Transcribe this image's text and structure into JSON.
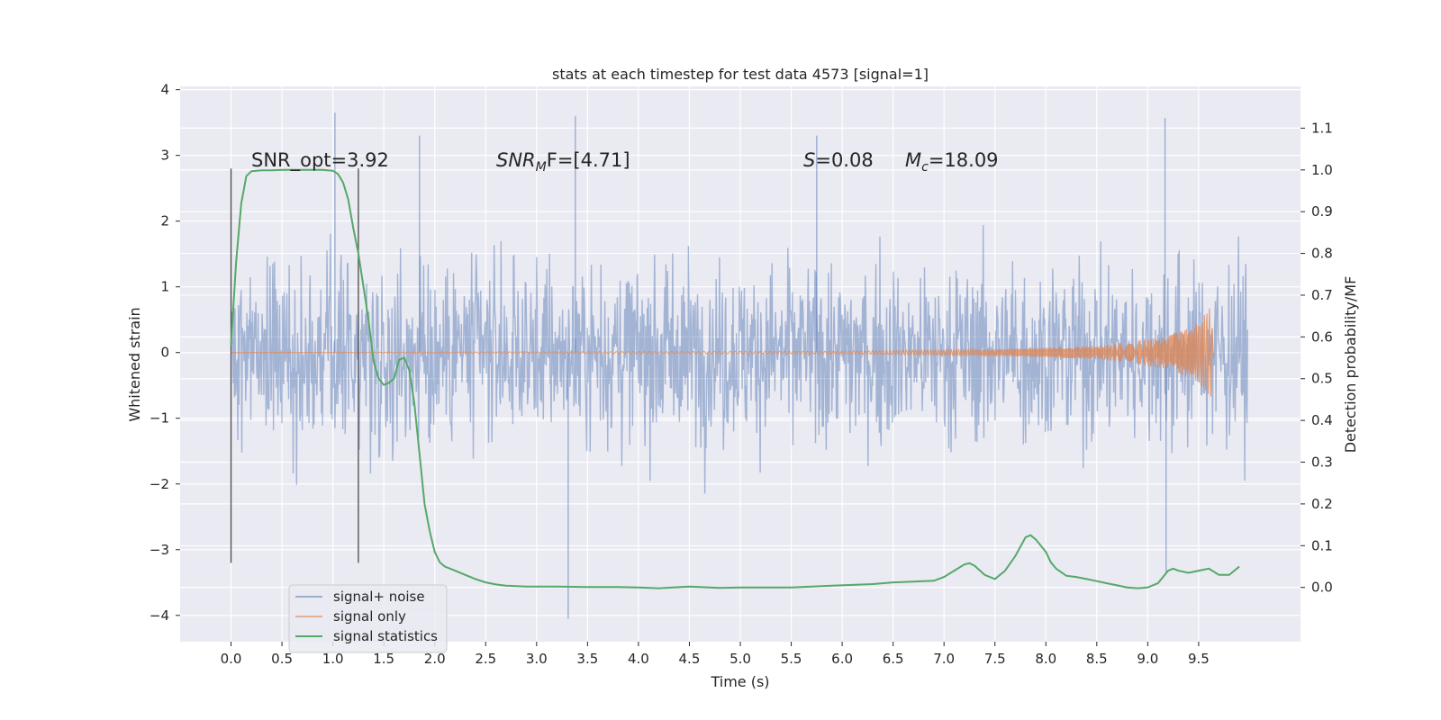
{
  "chart_data": {
    "type": "line",
    "title": "stats at each timestep for test data 4573 [signal=1]",
    "xlabel": "Time (s)",
    "ylabel_left": "Whitened strain",
    "ylabel_right": "Detection probability/MF",
    "xlim": [
      -0.5,
      10.5
    ],
    "ylim_left": [
      -4.4,
      4.05
    ],
    "ylim_right": [
      -0.13,
      1.2
    ],
    "xticks": [
      "0.0",
      "0.5",
      "1.0",
      "1.5",
      "2.0",
      "2.5",
      "3.0",
      "3.5",
      "4.0",
      "4.5",
      "5.0",
      "5.5",
      "6.0",
      "6.5",
      "7.0",
      "7.5",
      "8.0",
      "8.5",
      "9.0",
      "9.5"
    ],
    "yticks_left": [
      "4",
      "3",
      "2",
      "1",
      "0",
      "−1",
      "−2",
      "−3",
      "−4"
    ],
    "yticks_right": [
      "1.1",
      "1.0",
      "0.9",
      "0.8",
      "0.7",
      "0.6",
      "0.5",
      "0.4",
      "0.3",
      "0.2",
      "0.1",
      "0.0"
    ],
    "grid": true,
    "legend_placement": "lower-left",
    "annotations": {
      "snr_opt": "SNR_opt=3.92",
      "snr_mf": "SNR",
      "snr_mf_sub": "M",
      "snr_mf_rest": "F=[4.71]",
      "s_label": "S",
      "s_value": "=0.08",
      "mc_label": "M",
      "mc_sub": "c",
      "mc_value": "=18.09"
    },
    "vertical_markers_x": [
      0.0,
      1.25
    ],
    "vertical_markers_range": [
      -3.2,
      2.8
    ],
    "series": [
      {
        "name": "signal+ noise",
        "color": "#4c72b0",
        "style": "dense-noise",
        "x_range": [
          0.0,
          9.98
        ],
        "typical_band": [
          -1.6,
          1.6
        ],
        "notable_peaks": [
          [
            1.02,
            3.65
          ],
          [
            3.38,
            3.6
          ],
          [
            9.17,
            3.57
          ],
          [
            1.85,
            3.3
          ],
          [
            5.75,
            3.3
          ],
          [
            3.31,
            -4.05
          ],
          [
            9.18,
            -3.35
          ]
        ]
      },
      {
        "name": "signal only",
        "color": "#dd8452",
        "style": "chirp",
        "x_range": [
          0.0,
          9.65
        ],
        "envelope": [
          [
            0.0,
            0.0
          ],
          [
            6.0,
            0.02
          ],
          [
            7.5,
            0.05
          ],
          [
            8.5,
            0.1
          ],
          [
            9.2,
            0.25
          ],
          [
            9.5,
            0.45
          ],
          [
            9.62,
            0.7
          ],
          [
            9.65,
            0.0
          ]
        ]
      },
      {
        "name": "signal statistics",
        "color": "#55a868",
        "axis": "right",
        "x": [
          0.0,
          0.05,
          0.1,
          0.15,
          0.2,
          0.3,
          0.4,
          0.5,
          0.6,
          0.7,
          0.8,
          0.9,
          1.0,
          1.05,
          1.1,
          1.15,
          1.2,
          1.25,
          1.3,
          1.35,
          1.4,
          1.45,
          1.5,
          1.55,
          1.6,
          1.65,
          1.7,
          1.75,
          1.8,
          1.85,
          1.9,
          1.95,
          2.0,
          2.05,
          2.1,
          2.15,
          2.2,
          2.3,
          2.4,
          2.5,
          2.6,
          2.7,
          2.8,
          2.9,
          3.0,
          3.2,
          3.5,
          3.8,
          4.0,
          4.2,
          4.5,
          4.8,
          5.0,
          5.3,
          5.5,
          5.7,
          5.9,
          6.1,
          6.3,
          6.5,
          6.7,
          6.9,
          7.0,
          7.1,
          7.2,
          7.25,
          7.3,
          7.4,
          7.5,
          7.6,
          7.7,
          7.8,
          7.85,
          7.9,
          7.95,
          8.0,
          8.05,
          8.1,
          8.2,
          8.3,
          8.4,
          8.5,
          8.6,
          8.7,
          8.8,
          8.9,
          9.0,
          9.1,
          9.15,
          9.2,
          9.25,
          9.3,
          9.4,
          9.5,
          9.6,
          9.7,
          9.8,
          9.9
        ],
        "values": [
          0.58,
          0.78,
          0.92,
          0.985,
          0.997,
          0.999,
          0.999,
          1.0,
          1.0,
          1.0,
          1.0,
          1.0,
          0.998,
          0.99,
          0.97,
          0.93,
          0.86,
          0.8,
          0.72,
          0.64,
          0.54,
          0.5,
          0.485,
          0.49,
          0.5,
          0.545,
          0.55,
          0.52,
          0.44,
          0.32,
          0.2,
          0.135,
          0.085,
          0.06,
          0.05,
          0.045,
          0.04,
          0.03,
          0.02,
          0.012,
          0.007,
          0.004,
          0.003,
          0.002,
          0.002,
          0.002,
          0.001,
          0.001,
          0.0,
          -0.002,
          0.002,
          -0.001,
          0.0,
          0.0,
          0.0,
          0.002,
          0.004,
          0.006,
          0.008,
          0.012,
          0.014,
          0.016,
          0.025,
          0.04,
          0.055,
          0.058,
          0.052,
          0.03,
          0.02,
          0.04,
          0.075,
          0.12,
          0.125,
          0.115,
          0.1,
          0.085,
          0.06,
          0.045,
          0.028,
          0.025,
          0.02,
          0.015,
          0.01,
          0.005,
          0.0,
          -0.002,
          0.0,
          0.01,
          0.025,
          0.04,
          0.045,
          0.04,
          0.035,
          0.04,
          0.045,
          0.03,
          0.03,
          0.05
        ]
      }
    ]
  }
}
